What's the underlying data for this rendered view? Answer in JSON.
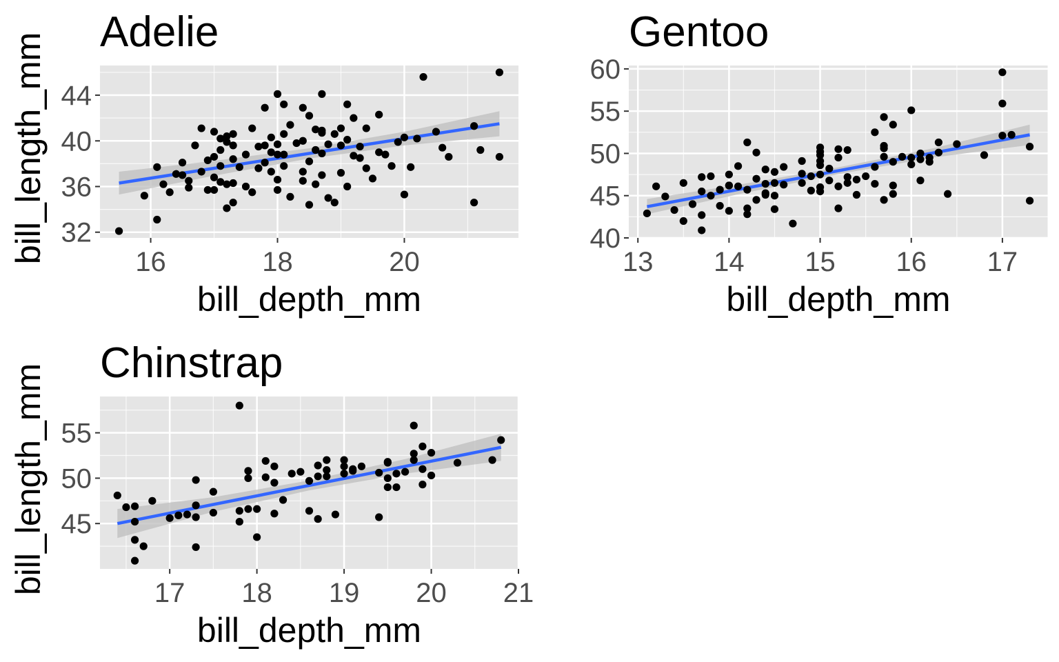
{
  "colors": {
    "panel_background": "#e5e5e5",
    "grid_major": "#ffffff",
    "point": "#000000",
    "fit_line": "#3366ff",
    "ci_band": "#bdbdbd",
    "tick_text": "#4d4d4d",
    "tick_mark": "#333333"
  },
  "chart_data": [
    {
      "type": "scatter",
      "title": "Adelie",
      "xlabel": "bill_depth_mm",
      "ylabel": "bill_length_mm",
      "xlim": [
        15.2,
        21.8
      ],
      "ylim": [
        31.5,
        46.6
      ],
      "xticks": [
        16,
        18,
        20
      ],
      "yticks": [
        32,
        36,
        40,
        44
      ],
      "grid": true,
      "fit": {
        "method": "lm",
        "start": [
          15.5,
          36.3
        ],
        "end": [
          21.5,
          41.5
        ],
        "ci_halfwidth": [
          1.0,
          0.65,
          0.45,
          0.6,
          1.1
        ]
      },
      "points": [
        [
          15.5,
          32.1
        ],
        [
          15.9,
          35.2
        ],
        [
          16.1,
          37.7
        ],
        [
          16.1,
          33.1
        ],
        [
          16.2,
          36.2
        ],
        [
          16.3,
          35.5
        ],
        [
          16.5,
          38.1
        ],
        [
          16.5,
          37.0
        ],
        [
          16.6,
          36.5
        ],
        [
          16.6,
          35.9
        ],
        [
          16.7,
          39.6
        ],
        [
          16.8,
          41.1
        ],
        [
          16.8,
          37.3
        ],
        [
          16.9,
          35.7
        ],
        [
          16.9,
          38.3
        ],
        [
          17.0,
          40.8
        ],
        [
          17.0,
          36.8
        ],
        [
          17.0,
          35.7
        ],
        [
          17.0,
          38.6
        ],
        [
          17.1,
          40.2
        ],
        [
          17.1,
          39.2
        ],
        [
          17.1,
          36.4
        ],
        [
          17.1,
          37.8
        ],
        [
          17.2,
          34.1
        ],
        [
          17.2,
          40.4
        ],
        [
          17.2,
          36.2
        ],
        [
          17.3,
          40.6
        ],
        [
          17.3,
          39.6
        ],
        [
          17.3,
          38.4
        ],
        [
          17.3,
          36.3
        ],
        [
          17.3,
          34.6
        ],
        [
          17.4,
          37.7
        ],
        [
          17.5,
          36.0
        ],
        [
          17.5,
          38.8
        ],
        [
          17.6,
          35.5
        ],
        [
          17.6,
          41.1
        ],
        [
          17.7,
          39.5
        ],
        [
          17.7,
          37.6
        ],
        [
          17.8,
          42.9
        ],
        [
          17.8,
          38.1
        ],
        [
          17.9,
          39.0
        ],
        [
          17.9,
          40.3
        ],
        [
          17.9,
          37.3
        ],
        [
          18.0,
          39.7
        ],
        [
          18.0,
          38.8
        ],
        [
          18.0,
          36.6
        ],
        [
          18.0,
          35.7
        ],
        [
          18.1,
          38.8
        ],
        [
          18.1,
          40.6
        ],
        [
          18.1,
          37.8
        ],
        [
          18.2,
          35.1
        ],
        [
          18.3,
          39.8
        ],
        [
          18.4,
          40.0
        ],
        [
          18.4,
          36.5
        ],
        [
          18.5,
          34.4
        ],
        [
          18.5,
          38.2
        ],
        [
          18.6,
          41.0
        ],
        [
          18.6,
          39.2
        ],
        [
          18.6,
          36.2
        ],
        [
          18.7,
          44.1
        ],
        [
          18.7,
          40.9
        ],
        [
          18.7,
          38.9
        ],
        [
          18.7,
          37.0
        ],
        [
          18.8,
          35.0
        ],
        [
          18.8,
          39.7
        ],
        [
          18.9,
          40.6
        ],
        [
          18.9,
          34.6
        ],
        [
          19.0,
          41.1
        ],
        [
          19.0,
          37.2
        ],
        [
          19.0,
          39.6
        ],
        [
          19.1,
          40.1
        ],
        [
          19.1,
          36.0
        ],
        [
          19.2,
          38.7
        ],
        [
          19.2,
          42.0
        ],
        [
          19.3,
          39.5
        ],
        [
          19.3,
          38.5
        ],
        [
          19.4,
          41.1
        ],
        [
          19.4,
          37.6
        ],
        [
          19.5,
          36.7
        ],
        [
          19.6,
          42.3
        ],
        [
          19.6,
          39.0
        ],
        [
          19.7,
          38.8
        ],
        [
          19.8,
          37.8
        ],
        [
          19.9,
          39.9
        ],
        [
          20.0,
          40.3
        ],
        [
          20.0,
          35.3
        ],
        [
          20.1,
          37.7
        ],
        [
          20.2,
          40.2
        ],
        [
          20.3,
          45.6
        ],
        [
          20.5,
          40.8
        ],
        [
          20.6,
          39.4
        ],
        [
          20.7,
          38.6
        ],
        [
          21.1,
          41.3
        ],
        [
          21.1,
          34.6
        ],
        [
          21.2,
          39.2
        ],
        [
          21.5,
          46.0
        ],
        [
          21.5,
          38.6
        ],
        [
          16.4,
          37.1
        ],
        [
          17.8,
          39.6
        ],
        [
          18.2,
          41.4
        ],
        [
          18.4,
          37.3
        ],
        [
          18.7,
          40.7
        ],
        [
          19.1,
          43.2
        ],
        [
          18.0,
          44.1
        ],
        [
          18.1,
          43.2
        ],
        [
          18.4,
          42.9
        ],
        [
          17.2,
          39.9
        ],
        [
          18.5,
          42.2
        ]
      ]
    },
    {
      "type": "scatter",
      "title": "Gentoo",
      "xlabel": "bill_depth_mm",
      "ylabel": "bill_length_mm",
      "xlim": [
        12.9,
        17.5
      ],
      "ylim": [
        40.0,
        60.4
      ],
      "xticks": [
        13,
        14,
        15,
        16,
        17
      ],
      "yticks": [
        40,
        45,
        50,
        55,
        60
      ],
      "grid": true,
      "fit": {
        "method": "lm",
        "start": [
          13.1,
          43.7
        ],
        "end": [
          17.3,
          52.2
        ],
        "ci_halfwidth": [
          0.9,
          0.55,
          0.4,
          0.55,
          1.2
        ]
      },
      "points": [
        [
          13.1,
          42.9
        ],
        [
          13.2,
          46.1
        ],
        [
          13.3,
          44.9
        ],
        [
          13.4,
          43.3
        ],
        [
          13.5,
          46.5
        ],
        [
          13.5,
          42.0
        ],
        [
          13.6,
          44.0
        ],
        [
          13.7,
          47.2
        ],
        [
          13.7,
          45.5
        ],
        [
          13.7,
          40.9
        ],
        [
          13.7,
          42.7
        ],
        [
          13.8,
          47.3
        ],
        [
          13.8,
          45.0
        ],
        [
          13.9,
          45.7
        ],
        [
          13.9,
          43.8
        ],
        [
          14.0,
          47.5
        ],
        [
          14.0,
          46.2
        ],
        [
          14.0,
          43.2
        ],
        [
          14.1,
          48.5
        ],
        [
          14.1,
          46.1
        ],
        [
          14.2,
          51.3
        ],
        [
          14.2,
          45.7
        ],
        [
          14.2,
          42.8
        ],
        [
          14.2,
          43.5
        ],
        [
          14.3,
          50.1
        ],
        [
          14.3,
          47.0
        ],
        [
          14.3,
          44.5
        ],
        [
          14.4,
          48.1
        ],
        [
          14.4,
          46.4
        ],
        [
          14.4,
          45.1
        ],
        [
          14.5,
          47.8
        ],
        [
          14.5,
          46.5
        ],
        [
          14.5,
          45.0
        ],
        [
          14.5,
          43.4
        ],
        [
          14.6,
          48.4
        ],
        [
          14.6,
          46.3
        ],
        [
          14.7,
          41.7
        ],
        [
          14.8,
          49.1
        ],
        [
          14.8,
          46.5
        ],
        [
          14.9,
          47.3
        ],
        [
          14.9,
          45.6
        ],
        [
          15.0,
          50.7
        ],
        [
          15.0,
          49.8
        ],
        [
          15.0,
          49.1
        ],
        [
          15.0,
          48.6
        ],
        [
          15.0,
          47.5
        ],
        [
          15.0,
          46.0
        ],
        [
          15.0,
          45.5
        ],
        [
          15.1,
          48.2
        ],
        [
          15.1,
          46.8
        ],
        [
          15.2,
          50.5
        ],
        [
          15.2,
          49.5
        ],
        [
          15.2,
          46.1
        ],
        [
          15.2,
          43.5
        ],
        [
          15.3,
          50.4
        ],
        [
          15.3,
          47.2
        ],
        [
          15.3,
          46.5
        ],
        [
          15.4,
          46.9
        ],
        [
          15.4,
          45.1
        ],
        [
          15.5,
          47.3
        ],
        [
          15.6,
          52.5
        ],
        [
          15.6,
          48.4
        ],
        [
          15.6,
          46.4
        ],
        [
          15.7,
          54.3
        ],
        [
          15.7,
          50.6
        ],
        [
          15.7,
          49.6
        ],
        [
          15.7,
          44.5
        ],
        [
          15.8,
          53.4
        ],
        [
          15.8,
          49.0
        ],
        [
          15.8,
          46.2
        ],
        [
          15.8,
          45.2
        ],
        [
          15.9,
          49.6
        ],
        [
          16.0,
          55.1
        ],
        [
          16.0,
          49.5
        ],
        [
          16.0,
          48.7
        ],
        [
          16.1,
          50.0
        ],
        [
          16.1,
          46.8
        ],
        [
          16.2,
          49.5
        ],
        [
          16.2,
          49.0
        ],
        [
          16.3,
          51.3
        ],
        [
          16.3,
          50.1
        ],
        [
          16.4,
          45.2
        ],
        [
          16.5,
          51.1
        ],
        [
          16.8,
          49.8
        ],
        [
          17.0,
          59.6
        ],
        [
          17.0,
          55.9
        ],
        [
          17.0,
          52.1
        ],
        [
          17.1,
          52.2
        ],
        [
          17.3,
          50.8
        ],
        [
          17.3,
          44.4
        ],
        [
          14.0,
          46.2
        ],
        [
          14.4,
          45.3
        ],
        [
          15.0,
          50.2
        ],
        [
          15.7,
          50.9
        ],
        [
          16.1,
          49.3
        ],
        [
          14.8,
          47.6
        ]
      ]
    },
    {
      "type": "scatter",
      "title": "Chinstrap",
      "xlabel": "bill_depth_mm",
      "ylabel": "bill_length_mm",
      "xlim": [
        16.2,
        21.0
      ],
      "ylim": [
        40.0,
        59.0
      ],
      "xticks": [
        17,
        18,
        19,
        20,
        21
      ],
      "yticks": [
        45,
        50,
        55
      ],
      "grid": true,
      "fit": {
        "method": "lm",
        "start": [
          16.4,
          45.0
        ],
        "end": [
          20.8,
          53.4
        ],
        "ci_halfwidth": [
          1.6,
          0.8,
          0.55,
          0.8,
          1.5
        ]
      },
      "points": [
        [
          16.4,
          48.1
        ],
        [
          16.5,
          46.8
        ],
        [
          16.6,
          46.9
        ],
        [
          16.6,
          45.2
        ],
        [
          16.6,
          43.2
        ],
        [
          16.6,
          40.9
        ],
        [
          16.7,
          42.5
        ],
        [
          16.8,
          47.5
        ],
        [
          17.0,
          45.6
        ],
        [
          17.1,
          45.9
        ],
        [
          17.3,
          49.8
        ],
        [
          17.3,
          47.0
        ],
        [
          17.3,
          45.7
        ],
        [
          17.3,
          42.4
        ],
        [
          17.5,
          48.5
        ],
        [
          17.5,
          46.2
        ],
        [
          17.8,
          58.0
        ],
        [
          17.8,
          46.4
        ],
        [
          17.8,
          45.2
        ],
        [
          17.9,
          50.8
        ],
        [
          17.9,
          50.0
        ],
        [
          17.9,
          46.6
        ],
        [
          18.0,
          43.5
        ],
        [
          18.1,
          51.9
        ],
        [
          18.2,
          51.3
        ],
        [
          18.2,
          49.5
        ],
        [
          18.2,
          46.1
        ],
        [
          18.3,
          47.6
        ],
        [
          18.4,
          50.5
        ],
        [
          18.5,
          50.7
        ],
        [
          18.6,
          49.7
        ],
        [
          18.6,
          46.4
        ],
        [
          18.7,
          51.4
        ],
        [
          18.7,
          50.2
        ],
        [
          18.7,
          45.5
        ],
        [
          18.8,
          52.0
        ],
        [
          18.8,
          50.9
        ],
        [
          18.8,
          50.2
        ],
        [
          18.9,
          46.0
        ],
        [
          19.0,
          52.0
        ],
        [
          19.0,
          51.3
        ],
        [
          19.0,
          50.5
        ],
        [
          19.1,
          50.8
        ],
        [
          19.2,
          51.3
        ],
        [
          19.4,
          50.6
        ],
        [
          19.4,
          45.7
        ],
        [
          19.5,
          51.7
        ],
        [
          19.5,
          50.0
        ],
        [
          19.5,
          49.0
        ],
        [
          19.6,
          50.5
        ],
        [
          19.6,
          49.0
        ],
        [
          19.7,
          50.7
        ],
        [
          19.8,
          55.8
        ],
        [
          19.8,
          52.7
        ],
        [
          19.9,
          53.5
        ],
        [
          19.9,
          51.0
        ],
        [
          19.9,
          49.3
        ],
        [
          20.0,
          52.8
        ],
        [
          20.0,
          50.3
        ],
        [
          20.3,
          51.7
        ],
        [
          20.7,
          52.0
        ],
        [
          20.8,
          54.2
        ],
        [
          19.8,
          52.0
        ],
        [
          17.2,
          46.0
        ],
        [
          18.1,
          50.1
        ],
        [
          19.1,
          51.0
        ],
        [
          18.0,
          46.6
        ],
        [
          19.5,
          51.8
        ]
      ]
    }
  ]
}
